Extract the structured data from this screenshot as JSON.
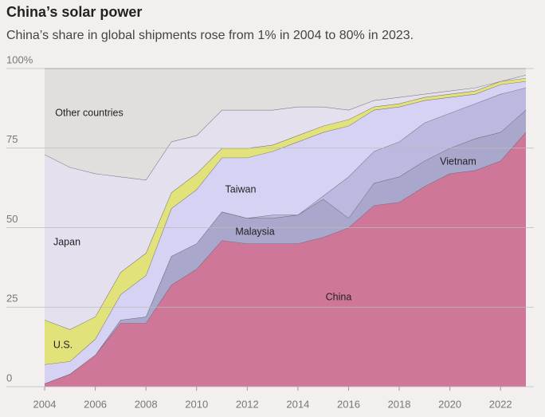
{
  "chart_data": {
    "type": "stacked-area",
    "title": "China’s solar power",
    "subtitle": "China’s share in global shipments rose from 1% in 2004 to 80% in 2023.",
    "x": [
      2004,
      2005,
      2006,
      2007,
      2008,
      2009,
      2010,
      2011,
      2012,
      2013,
      2014,
      2015,
      2016,
      2017,
      2018,
      2019,
      2020,
      2021,
      2022,
      2023
    ],
    "series": [
      {
        "name": "China",
        "color": "#cf7799",
        "values": [
          1,
          4,
          10,
          20,
          20,
          32,
          37,
          46,
          45,
          45,
          45,
          47,
          50,
          57,
          58,
          63,
          67,
          68,
          71,
          80
        ]
      },
      {
        "name": "Malaysia",
        "color": "#aaa7cd",
        "values": [
          0,
          0,
          0,
          1,
          2,
          9,
          8,
          9,
          8,
          8,
          9,
          12,
          3,
          7,
          8,
          8,
          8,
          10,
          9,
          7
        ]
      },
      {
        "name": "Vietnam",
        "color": "#bcb8e0",
        "values": [
          0,
          0,
          0,
          0,
          0,
          0,
          0,
          0,
          0,
          1,
          0,
          1,
          13,
          10,
          11,
          12,
          11,
          11,
          12,
          7
        ]
      },
      {
        "name": "Taiwan",
        "color": "#d6d2f3",
        "values": [
          6,
          4,
          5,
          8,
          13,
          15,
          17,
          17,
          19,
          20,
          23,
          20,
          16,
          13,
          11,
          7,
          5,
          3,
          3,
          2
        ]
      },
      {
        "name": "U.S.",
        "color": "#e2e27a",
        "values": [
          14,
          10,
          7,
          7,
          7,
          5,
          5,
          3,
          3,
          2,
          2,
          2,
          2,
          1,
          1,
          1,
          1,
          1,
          1,
          1
        ]
      },
      {
        "name": "Japan",
        "color": "#e4e0ee",
        "values": [
          52,
          51,
          45,
          30,
          23,
          16,
          12,
          12,
          12,
          11,
          9,
          6,
          3,
          2,
          2,
          1,
          1,
          1,
          0,
          1
        ]
      },
      {
        "name": "Other countries",
        "color": "#e2dedd",
        "values": [
          27,
          31,
          33,
          34,
          35,
          23,
          21,
          13,
          13,
          13,
          12,
          12,
          13,
          10,
          9,
          8,
          7,
          6,
          4,
          2
        ]
      }
    ],
    "xlim": [
      2004,
      2023
    ],
    "xticks": [
      2004,
      2006,
      2008,
      2010,
      2012,
      2014,
      2016,
      2018,
      2020,
      2022
    ],
    "ylim": [
      0,
      100
    ],
    "yticks": [
      0,
      25,
      50,
      75,
      {
        "value": 100,
        "label": "100%"
      }
    ],
    "grid": true
  }
}
